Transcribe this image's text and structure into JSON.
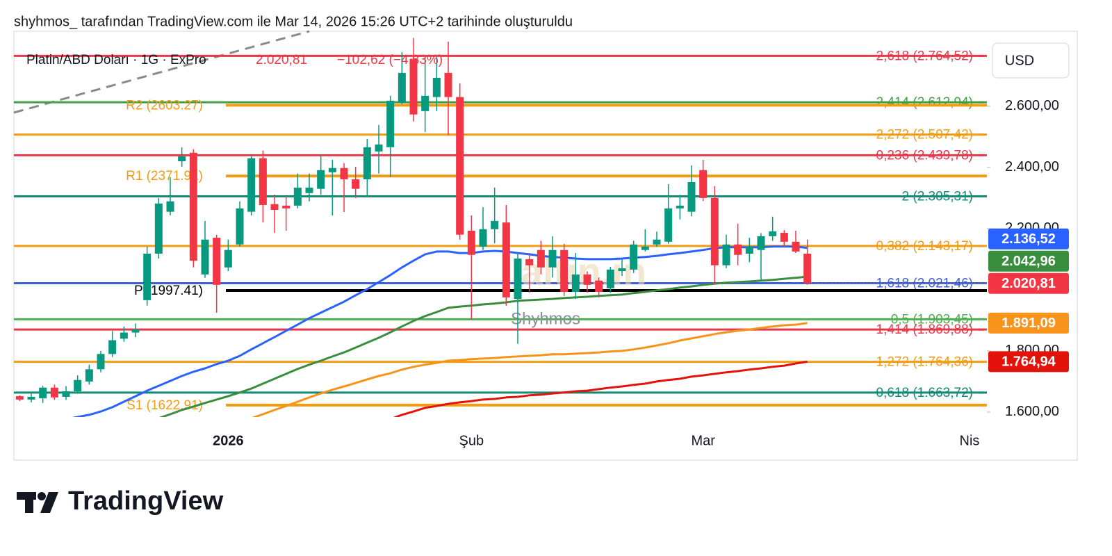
{
  "header": {
    "caption": "shyhmos_ tarafından TradingView.com ile Mar 14, 2026 15:26 UTC+2 tarihinde oluşturuldu"
  },
  "chart_data": {
    "type": "candlestick",
    "title": "Platin/ABD Doları · 1G · ExPro",
    "last_price_label": "2.020,81",
    "change_label": "−102,62 (−4,83%)",
    "currency": "USD",
    "watermarks": [
      "altin.in",
      "Shyhmos"
    ],
    "categories": [
      null,
      null,
      null,
      null,
      null,
      null,
      null,
      null,
      null,
      null,
      null,
      null,
      null,
      null,
      null,
      null,
      null,
      null,
      "2026",
      null,
      null,
      null,
      null,
      null,
      null,
      null,
      null,
      null,
      null,
      null,
      null,
      null,
      null,
      null,
      null,
      null,
      null,
      null,
      null,
      "Şub",
      null,
      null,
      null,
      null,
      null,
      null,
      null,
      null,
      null,
      null,
      null,
      null,
      null,
      null,
      null,
      null,
      null,
      null,
      null,
      "Mar",
      null,
      null,
      null,
      null,
      null,
      null,
      null,
      null,
      null,
      null,
      null,
      null,
      null,
      null,
      null,
      null,
      null,
      null,
      null,
      null,
      null,
      null,
      "Nis",
      null
    ],
    "bold_categories": [
      "2026"
    ],
    "open": [
      1652,
      1641,
      1645,
      1680,
      1650,
      1668,
      1700,
      1740,
      1790,
      1840,
      1860,
      1966,
      2118,
      2255,
      2420,
      2448,
      2050,
      2170,
      2073,
      2148,
      2255,
      2430,
      2280,
      2275,
      2275,
      2316,
      2330,
      2384,
      2398,
      2361,
      2361,
      2452,
      2466,
      2611,
      2755,
      2584,
      2630,
      2709,
      2630,
      2193,
      2141,
      2198,
      2220,
      1970,
      2100,
      2130,
      2073,
      2130,
      1993,
      2050,
      2030,
      2005,
      2061,
      2066,
      2130,
      2148,
      2157,
      2266,
      2255,
      2391,
      2300,
      2080,
      2148,
      2118,
      2130,
      2175,
      2186,
      2157,
      2118,
      null,
      null,
      null,
      null,
      null,
      null,
      null,
      null,
      null,
      null,
      null,
      null,
      null,
      null,
      null
    ],
    "high": [
      1655,
      1660,
      1686,
      1690,
      1685,
      1720,
      1755,
      1800,
      1865,
      1880,
      1890,
      2141,
      2300,
      2368,
      2466,
      2459,
      2225,
      2180,
      2164,
      2289,
      2443,
      2455,
      2311,
      2307,
      2380,
      2380,
      2443,
      2425,
      2414,
      2402,
      2493,
      2539,
      2634,
      2777,
      2823,
      2766,
      2761,
      2811,
      2675,
      2243,
      2270,
      2334,
      2277,
      2118,
      2120,
      2160,
      2175,
      2150,
      2120,
      2060,
      2040,
      2075,
      2100,
      2160,
      2198,
      2190,
      2345,
      2310,
      2407,
      2425,
      2339,
      2180,
      2216,
      2170,
      2185,
      2239,
      2195,
      2193,
      2164,
      null,
      null,
      null,
      null,
      null,
      null,
      null,
      null,
      null,
      null,
      null,
      null,
      null,
      null,
      null
    ],
    "low": [
      1636,
      1632,
      1630,
      1640,
      1640,
      1660,
      1690,
      1730,
      1780,
      1830,
      1845,
      1948,
      2102,
      2243,
      2402,
      2073,
      2039,
      1925,
      2061,
      2141,
      2243,
      2220,
      2186,
      2193,
      2266,
      2289,
      2311,
      2243,
      2254,
      2300,
      2307,
      2380,
      2368,
      2607,
      2550,
      2516,
      2584,
      2505,
      2164,
      1902,
      2130,
      2152,
      1948,
      1823,
      1990,
      2050,
      2040,
      1980,
      1970,
      1990,
      1975,
      1990,
      2045,
      2055,
      2125,
      2140,
      2150,
      2230,
      2240,
      2290,
      2016,
      2070,
      2080,
      2090,
      2027,
      2160,
      2140,
      2120,
      2016,
      null,
      null,
      null,
      null,
      null,
      null,
      null,
      null,
      null,
      null,
      null,
      null,
      null,
      null,
      null
    ],
    "close": [
      1641,
      1650,
      1680,
      1648,
      1668,
      1705,
      1740,
      1790,
      1835,
      1860,
      1870,
      2118,
      2282,
      2289,
      2436,
      2095,
      2164,
      2016,
      2130,
      2266,
      2430,
      2277,
      2261,
      2266,
      2334,
      2334,
      2391,
      2398,
      2361,
      2330,
      2466,
      2475,
      2618,
      2709,
      2573,
      2634,
      2693,
      2630,
      2180,
      2114,
      2198,
      2225,
      1975,
      2102,
      2080,
      2073,
      2130,
      1993,
      2050,
      2016,
      1993,
      2066,
      2070,
      2148,
      2141,
      2164,
      2266,
      2275,
      2352,
      2300,
      2080,
      2148,
      2114,
      2141,
      2175,
      2191,
      2157,
      2125,
      2020.81,
      null,
      null,
      null,
      null,
      null,
      null,
      null,
      null,
      null,
      null,
      null,
      null,
      null,
      null,
      null
    ],
    "up_color": "#089981",
    "down_color": "#f23645",
    "series": [
      {
        "color": "#2962ff",
        "values": [
          null,
          null,
          null,
          null,
          1577,
          1584,
          1591,
          1602,
          1616,
          1634,
          1652,
          1670,
          1686,
          1702,
          1718,
          1732,
          1743,
          1757,
          1768,
          1784,
          1805,
          1825,
          1845,
          1866,
          1886,
          1907,
          1925,
          1943,
          1961,
          1982,
          2002,
          2025,
          2048,
          2073,
          2095,
          2116,
          2125,
          2125,
          2120,
          2120,
          2125,
          2127,
          2125,
          2120,
          2116,
          2111,
          2107,
          2105,
          2102,
          2100,
          2100,
          2100,
          2102,
          2105,
          2107,
          2111,
          2116,
          2120,
          2125,
          2130,
          2136,
          2139,
          2139,
          2139,
          2139,
          2141,
          2141,
          2141,
          2136.52,
          null,
          null,
          null,
          null,
          null,
          null,
          null,
          null,
          null,
          null,
          null,
          null,
          null,
          null,
          null
        ]
      },
      {
        "color": "#388e3c",
        "values": [
          null,
          null,
          null,
          null,
          null,
          null,
          null,
          null,
          null,
          null,
          null,
          null,
          1580,
          1593,
          1607,
          1618,
          1630,
          1641,
          1652,
          1664,
          1677,
          1693,
          1709,
          1725,
          1741,
          1755,
          1768,
          1782,
          1795,
          1811,
          1827,
          1843,
          1861,
          1880,
          1898,
          1914,
          1927,
          1941,
          1945,
          1948,
          1952,
          1955,
          1959,
          1964,
          1966,
          1968,
          1970,
          1973,
          1975,
          1977,
          1980,
          1982,
          1984,
          1989,
          1993,
          1998,
          2002,
          2007,
          2011,
          2016,
          2020,
          2023,
          2025,
          2027,
          2030,
          2032,
          2036,
          2039,
          2042.96,
          null,
          null,
          null,
          null,
          null,
          null,
          null,
          null,
          null,
          null,
          null,
          null,
          null,
          null,
          null
        ]
      },
      {
        "color": "#f7931a",
        "values": [
          null,
          null,
          null,
          null,
          null,
          null,
          null,
          null,
          null,
          null,
          null,
          null,
          null,
          null,
          null,
          null,
          null,
          null,
          null,
          null,
          1580,
          1593,
          1607,
          1620,
          1634,
          1648,
          1661,
          1673,
          1684,
          1695,
          1707,
          1718,
          1727,
          1739,
          1748,
          1755,
          1761,
          1768,
          1770,
          1773,
          1775,
          1777,
          1780,
          1782,
          1784,
          1786,
          1789,
          1789,
          1791,
          1793,
          1795,
          1798,
          1800,
          1805,
          1811,
          1818,
          1825,
          1834,
          1841,
          1848,
          1855,
          1861,
          1866,
          1870,
          1875,
          1880,
          1884,
          1886,
          1891.09,
          null,
          null,
          null,
          null,
          null,
          null,
          null,
          null,
          null,
          null,
          null,
          null,
          null,
          null,
          null
        ]
      },
      {
        "color": "#e3120b",
        "values": [
          null,
          null,
          null,
          null,
          null,
          null,
          null,
          null,
          null,
          null,
          null,
          null,
          null,
          null,
          null,
          null,
          null,
          null,
          null,
          null,
          null,
          null,
          null,
          null,
          null,
          null,
          null,
          null,
          null,
          null,
          null,
          null,
          1577,
          1591,
          1602,
          1614,
          1620,
          1627,
          1632,
          1636,
          1641,
          1643,
          1648,
          1650,
          1655,
          1657,
          1661,
          1664,
          1668,
          1670,
          1675,
          1680,
          1684,
          1689,
          1693,
          1700,
          1705,
          1709,
          1716,
          1720,
          1725,
          1730,
          1734,
          1739,
          1743,
          1748,
          1752,
          1759,
          1764.94,
          null,
          null,
          null,
          null,
          null,
          null,
          null,
          null,
          null,
          null,
          null,
          null,
          null,
          null,
          null
        ]
      }
    ],
    "fib_levels": [
      {
        "label": "2,618 (2.764,52)",
        "value": 2764.52,
        "color": "#e5394a"
      },
      {
        "label": "2,414 (2.612,94)",
        "value": 2612.94,
        "color": "#43a047"
      },
      {
        "label": "2,272 (2.507,42)",
        "value": 2507.42,
        "color": "#f39c12"
      },
      {
        "label": "0,236 (2.439,78)",
        "value": 2439.78,
        "color": "#e5394a"
      },
      {
        "label": "2 (2.305,31)",
        "value": 2305.31,
        "color": "#138a74"
      },
      {
        "label": "0,382 (2.143,17)",
        "value": 2143.17,
        "color": "#f39c12"
      },
      {
        "label": "1,618 (2.021,46)",
        "value": 2021.46,
        "color": "#3f5fd9"
      },
      {
        "label": "0,5 (1.903,45)",
        "value": 1903.45,
        "color": "#4caf50"
      },
      {
        "label": "1,414 (1.869,88)",
        "value": 1869.88,
        "color": "#e5394a"
      },
      {
        "label": "1,272 (1.764,36)",
        "value": 1764.36,
        "color": "#f39c12"
      },
      {
        "label": "0,618 (1.663,72)",
        "value": 1663.72,
        "color": "#138a74"
      }
    ],
    "pivot_levels": [
      {
        "label": "R2 (2603.27)",
        "value": 2603.27,
        "color": "#f39c12"
      },
      {
        "label": "R1 (2371.91)",
        "value": 2371.91,
        "color": "#f39c12"
      },
      {
        "label": "P (1997.41)",
        "value": 1997.41,
        "color": "#000000"
      },
      {
        "label": "S1 (1622.91)",
        "value": 1622.91,
        "color": "#f39c12"
      }
    ],
    "price_badges": [
      {
        "value": 2136.52,
        "label": "2.136,52",
        "color": "#2962ff"
      },
      {
        "value": 2042.96,
        "label": "2.042,96",
        "color": "#388e3c"
      },
      {
        "value": 2020.81,
        "label": "2.020,81",
        "color": "#f23645"
      },
      {
        "value": 1891.09,
        "label": "1.891,09",
        "color": "#f7931a"
      },
      {
        "value": 1764.94,
        "label": "1.764,94",
        "color": "#e3120b"
      }
    ],
    "ylim": [
      1584,
      2845
    ],
    "yticks": [
      {
        "value": 1600,
        "label": "1.600,00"
      },
      {
        "value": 1800,
        "label": "1.800,00"
      },
      {
        "value": 2200,
        "label": "2.200,00"
      },
      {
        "value": 2400,
        "label": "2.400,00"
      },
      {
        "value": 2600,
        "label": "2.600,00"
      }
    ]
  },
  "footer": {
    "brand": "TradingView"
  }
}
